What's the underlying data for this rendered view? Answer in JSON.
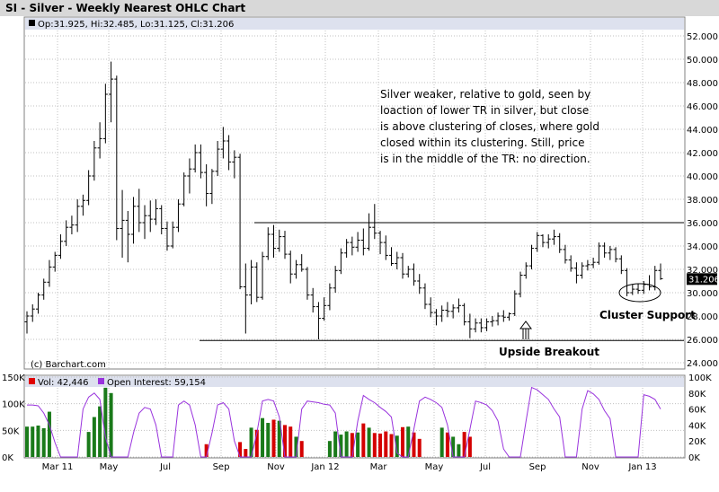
{
  "header": {
    "title": "SI - Silver - Weekly Nearest OHLC Chart",
    "ohlc_label": "Op:31.925, Hi:32.485, Lo:31.125, Cl:31.206",
    "last_price_label": "31.206"
  },
  "volume_panel": {
    "vol_label": "Vol: 42,446",
    "oi_label": "Open Interest: 59,154"
  },
  "credit": "(c) Barchart.com",
  "annotations": {
    "commentary": [
      "Silver weaker, relative to gold, seen by",
      "loaction of lower TR in silver, but close",
      "is above clustering of closes, where gold",
      "closed within its clustering.  Still, price",
      "is in the middle of the TR: no direction."
    ],
    "cluster_support": "Cluster Support",
    "upside_breakout": "Upside Breakout"
  },
  "colors": {
    "background": "#ffffff",
    "title_bar": "#d8d8d8",
    "plot_bg": "#ffffff",
    "info_strip": "#dde1ee",
    "grid": "#c0c0c0",
    "price_bar": "#000000",
    "vol_up": "#1a7a1a",
    "vol_down": "#d40000",
    "open_interest": "#9933dd",
    "vol_swatch_red": "#e00000",
    "oi_swatch": "#9933dd"
  },
  "chart_data": [
    {
      "type": "ohlc",
      "title": "SI - Silver - Weekly Nearest OHLC Chart",
      "ylim": [
        24,
        52.5
      ],
      "y_ticks": [
        "52.000",
        "50.000",
        "48.000",
        "46.000",
        "44.000",
        "42.000",
        "40.000",
        "38.000",
        "36.000",
        "34.000",
        "32.000",
        "30.000",
        "28.000",
        "26.000",
        "24.000"
      ],
      "x_ticks": [
        "Mar 11",
        "May",
        "Jul",
        "Sep",
        "Nov",
        "Jan 12",
        "Mar",
        "May",
        "Jul",
        "Sep",
        "Nov",
        "Jan 13"
      ],
      "last_close": 31.206,
      "horizontal_lines": [
        36.0,
        25.9
      ],
      "series": [
        [
          27.5,
          28.4,
          26.5,
          28.0
        ],
        [
          28.0,
          29.0,
          27.5,
          28.6
        ],
        [
          28.6,
          30.0,
          28.2,
          29.8
        ],
        [
          29.8,
          31.2,
          29.4,
          30.9
        ],
        [
          30.9,
          32.8,
          30.5,
          32.2
        ],
        [
          32.2,
          33.5,
          31.8,
          33.2
        ],
        [
          33.2,
          35.0,
          32.9,
          34.4
        ],
        [
          34.4,
          36.2,
          34.0,
          35.6
        ],
        [
          35.6,
          36.6,
          35.0,
          35.8
        ],
        [
          35.8,
          38.0,
          35.2,
          37.4
        ],
        [
          37.4,
          38.4,
          36.6,
          37.9
        ],
        [
          37.9,
          40.5,
          37.5,
          40.0
        ],
        [
          40.0,
          43.0,
          39.6,
          42.4
        ],
        [
          42.4,
          44.6,
          41.5,
          43.2
        ],
        [
          43.2,
          47.9,
          42.8,
          47.0
        ],
        [
          47.0,
          49.8,
          44.6,
          48.3
        ],
        [
          48.3,
          48.6,
          34.5,
          35.5
        ],
        [
          35.5,
          38.8,
          33.0,
          36.2
        ],
        [
          36.2,
          37.0,
          32.6,
          35.0
        ],
        [
          35.0,
          38.2,
          34.2,
          37.4
        ],
        [
          37.4,
          38.9,
          35.2,
          36.0
        ],
        [
          36.0,
          37.5,
          34.6,
          36.6
        ],
        [
          36.6,
          37.9,
          35.2,
          36.3
        ],
        [
          36.3,
          38.0,
          35.8,
          37.2
        ],
        [
          37.2,
          37.5,
          35.0,
          35.5
        ],
        [
          35.5,
          36.1,
          33.6,
          34.0
        ],
        [
          34.0,
          36.1,
          33.8,
          35.6
        ],
        [
          35.6,
          38.0,
          35.2,
          37.6
        ],
        [
          37.6,
          40.3,
          37.4,
          40.0
        ],
        [
          40.0,
          41.5,
          38.5,
          40.6
        ],
        [
          40.6,
          42.7,
          40.3,
          42.0
        ],
        [
          42.0,
          42.7,
          39.8,
          40.3
        ],
        [
          40.3,
          41.0,
          37.4,
          38.5
        ],
        [
          38.5,
          40.6,
          37.6,
          40.4
        ],
        [
          40.4,
          43.0,
          40.0,
          42.3
        ],
        [
          42.3,
          44.2,
          41.5,
          43.0
        ],
        [
          43.0,
          43.5,
          40.5,
          41.2
        ],
        [
          41.2,
          42.2,
          39.8,
          41.6
        ],
        [
          41.6,
          41.9,
          30.3,
          30.5
        ],
        [
          30.5,
          32.5,
          26.5,
          29.8
        ],
        [
          29.8,
          32.8,
          29.0,
          32.2
        ],
        [
          32.2,
          32.6,
          29.2,
          29.6
        ],
        [
          29.6,
          33.5,
          29.4,
          33.1
        ],
        [
          33.1,
          35.6,
          32.8,
          35.0
        ],
        [
          35.0,
          35.8,
          33.0,
          33.8
        ],
        [
          33.8,
          35.4,
          33.5,
          34.8
        ],
        [
          34.8,
          35.3,
          32.9,
          33.3
        ],
        [
          33.3,
          33.6,
          30.8,
          31.6
        ],
        [
          31.6,
          32.8,
          31.2,
          32.4
        ],
        [
          32.4,
          33.3,
          31.8,
          32.0
        ],
        [
          32.0,
          32.2,
          29.4,
          29.8
        ],
        [
          29.8,
          30.4,
          28.3,
          28.8
        ],
        [
          28.8,
          29.2,
          26.0,
          27.8
        ],
        [
          27.8,
          29.6,
          27.6,
          28.9
        ],
        [
          28.9,
          30.8,
          28.5,
          30.4
        ],
        [
          30.4,
          32.3,
          30.0,
          31.9
        ],
        [
          31.9,
          33.8,
          31.6,
          33.4
        ],
        [
          33.4,
          34.6,
          33.0,
          34.3
        ],
        [
          34.3,
          34.8,
          33.2,
          33.9
        ],
        [
          33.9,
          35.2,
          33.5,
          34.5
        ],
        [
          34.5,
          35.5,
          33.2,
          33.8
        ],
        [
          33.8,
          36.8,
          33.6,
          35.6
        ],
        [
          35.6,
          37.6,
          34.6,
          35.1
        ],
        [
          35.1,
          35.3,
          33.3,
          34.3
        ],
        [
          34.3,
          34.9,
          32.8,
          33.2
        ],
        [
          33.2,
          33.9,
          32.3,
          32.5
        ],
        [
          32.5,
          33.5,
          32.0,
          33.0
        ],
        [
          33.0,
          33.4,
          31.2,
          31.6
        ],
        [
          31.6,
          32.3,
          31.3,
          32.0
        ],
        [
          32.0,
          32.5,
          30.6,
          31.0
        ],
        [
          31.0,
          31.6,
          29.9,
          30.4
        ],
        [
          30.4,
          30.8,
          28.6,
          29.0
        ],
        [
          29.0,
          29.6,
          27.9,
          28.3
        ],
        [
          28.3,
          28.6,
          27.2,
          28.0
        ],
        [
          28.0,
          28.9,
          27.5,
          28.5
        ],
        [
          28.5,
          29.2,
          27.9,
          28.4
        ],
        [
          28.4,
          29.0,
          27.8,
          28.7
        ],
        [
          28.7,
          29.5,
          28.3,
          28.9
        ],
        [
          28.9,
          29.1,
          27.2,
          27.5
        ],
        [
          27.5,
          28.2,
          26.1,
          26.9
        ],
        [
          26.9,
          27.8,
          26.6,
          27.4
        ],
        [
          27.4,
          27.8,
          26.6,
          27.0
        ],
        [
          27.0,
          27.8,
          26.7,
          27.5
        ],
        [
          27.5,
          28.0,
          27.1,
          27.6
        ],
        [
          27.6,
          28.3,
          27.2,
          28.0
        ],
        [
          28.0,
          28.5,
          27.5,
          27.9
        ],
        [
          27.9,
          28.3,
          27.6,
          28.2
        ],
        [
          28.2,
          30.2,
          28.0,
          29.9
        ],
        [
          29.9,
          31.8,
          29.6,
          31.5
        ],
        [
          31.5,
          32.6,
          31.2,
          32.3
        ],
        [
          32.3,
          34.1,
          32.0,
          33.8
        ],
        [
          33.8,
          35.2,
          33.5,
          34.9
        ],
        [
          34.9,
          35.0,
          33.9,
          34.3
        ],
        [
          34.3,
          35.0,
          33.8,
          34.6
        ],
        [
          34.6,
          35.4,
          34.1,
          34.8
        ],
        [
          34.8,
          35.1,
          33.4,
          33.7
        ],
        [
          33.7,
          34.1,
          32.5,
          32.8
        ],
        [
          32.8,
          33.2,
          31.8,
          32.1
        ],
        [
          32.1,
          32.6,
          30.8,
          31.5
        ],
        [
          31.5,
          32.6,
          31.2,
          32.3
        ],
        [
          32.3,
          32.8,
          31.9,
          32.4
        ],
        [
          32.4,
          33.0,
          32.1,
          32.6
        ],
        [
          32.6,
          34.3,
          32.4,
          34.0
        ],
        [
          34.0,
          34.3,
          33.0,
          33.4
        ],
        [
          33.4,
          34.0,
          32.8,
          33.7
        ],
        [
          33.7,
          33.9,
          32.6,
          32.9
        ],
        [
          32.9,
          33.2,
          31.6,
          31.9
        ],
        [
          31.9,
          32.1,
          29.7,
          30.0
        ],
        [
          30.0,
          30.7,
          29.8,
          30.3
        ],
        [
          30.3,
          30.8,
          29.9,
          30.2
        ],
        [
          30.2,
          31.0,
          29.9,
          30.7
        ],
        [
          30.7,
          31.5,
          30.2,
          30.5
        ],
        [
          30.5,
          32.3,
          30.2,
          31.9
        ],
        [
          31.9,
          32.5,
          31.1,
          31.2
        ]
      ]
    },
    {
      "type": "bar",
      "title": "",
      "ylabel_left_ticks": [
        "150K",
        "100K",
        "50K",
        "0K"
      ],
      "ylabel_right_ticks": [
        "100K",
        "80K",
        "60K",
        "40K",
        "20K",
        "0K"
      ],
      "vol_ylim": [
        0,
        150
      ],
      "oi_ylim": [
        0,
        100
      ],
      "volume_units": "thousands",
      "series": [
        {
          "name": "Vol",
          "values": [
            57,
            57,
            59,
            54,
            85,
            0,
            0,
            0,
            0,
            0,
            0,
            47,
            75,
            95,
            130,
            120,
            0,
            0,
            0,
            0,
            0,
            0,
            0,
            0,
            0,
            0,
            0,
            0,
            0,
            0,
            0,
            0,
            24,
            0,
            0,
            0,
            0,
            0,
            28,
            15,
            55,
            51,
            73,
            64,
            70,
            68,
            60,
            57,
            38,
            30,
            0,
            0,
            0,
            0,
            30,
            48,
            42,
            48,
            45,
            46,
            63,
            55,
            45,
            44,
            48,
            43,
            40,
            56,
            57,
            46,
            34,
            0,
            0,
            0,
            55,
            46,
            38,
            24,
            47,
            38,
            0,
            0,
            0,
            0,
            0,
            0,
            0,
            0,
            0,
            0,
            0,
            0,
            0,
            0,
            0,
            0,
            0,
            0,
            0,
            0,
            0,
            0,
            0,
            0,
            0,
            0,
            0,
            0,
            0,
            0,
            0,
            0,
            0,
            0
          ],
          "colors_by_index": "green=up, red=down"
        },
        {
          "name": "Open Interest",
          "values": [
            65,
            65,
            64,
            55,
            40,
            18,
            0,
            0,
            0,
            0,
            60,
            75,
            80,
            72,
            25,
            0,
            0,
            0,
            0,
            30,
            55,
            62,
            60,
            40,
            0,
            0,
            0,
            65,
            70,
            65,
            40,
            0,
            0,
            30,
            65,
            68,
            60,
            20,
            0,
            0,
            0,
            30,
            70,
            72,
            70,
            50,
            0,
            0,
            0,
            60,
            70,
            69,
            68,
            66,
            65,
            55,
            0,
            0,
            0,
            45,
            77,
            72,
            68,
            62,
            57,
            50,
            5,
            0,
            0,
            35,
            70,
            75,
            72,
            68,
            62,
            40,
            0,
            0,
            0,
            35,
            70,
            68,
            65,
            58,
            45,
            10,
            0,
            0,
            0,
            45,
            87,
            84,
            78,
            72,
            60,
            50,
            0,
            0,
            0,
            60,
            83,
            79,
            72,
            58,
            48,
            0,
            0,
            0,
            0,
            0,
            78,
            76,
            72,
            60
          ]
        }
      ]
    }
  ]
}
